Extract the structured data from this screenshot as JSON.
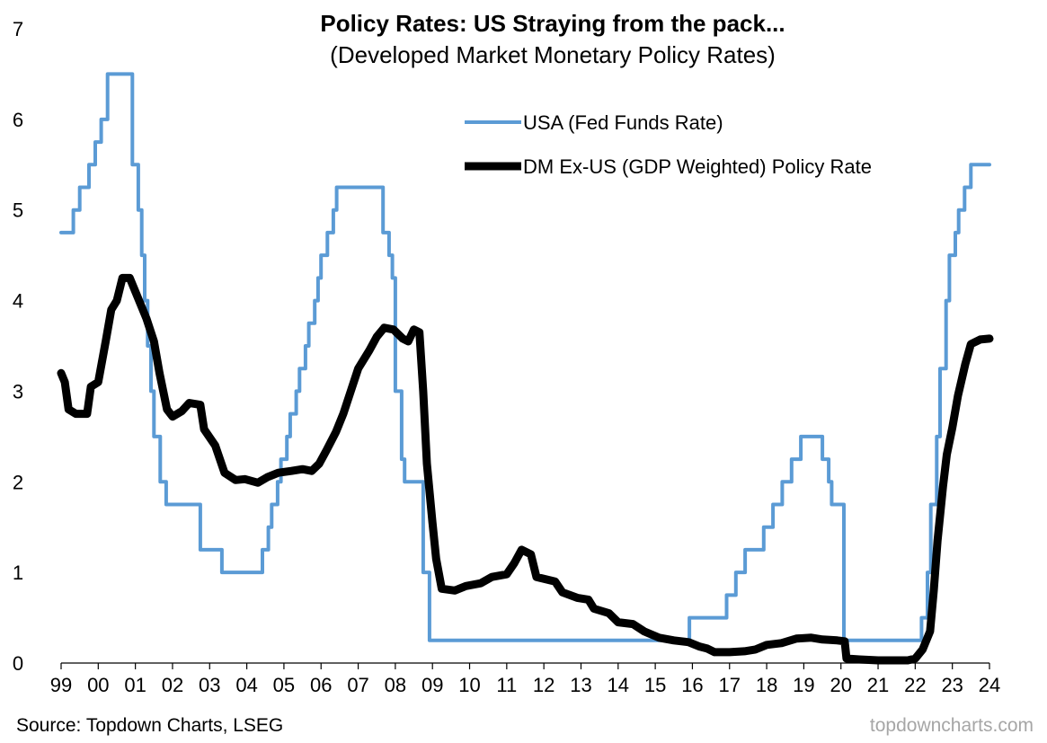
{
  "chart_data": {
    "type": "line",
    "title": "Policy Rates: US Straying from the pack...",
    "subtitle": "(Developed Market Monetary Policy Rates)",
    "xlabel": "",
    "ylabel": "",
    "xlim": [
      1999,
      2024
    ],
    "ylim": [
      0,
      7
    ],
    "y_ticks": [
      "0",
      "1",
      "2",
      "3",
      "4",
      "5",
      "6",
      "7"
    ],
    "x_ticks": [
      "99",
      "00",
      "01",
      "02",
      "03",
      "04",
      "05",
      "06",
      "07",
      "08",
      "09",
      "10",
      "11",
      "12",
      "13",
      "14",
      "15",
      "16",
      "17",
      "18",
      "19",
      "20",
      "21",
      "22",
      "23",
      "24"
    ],
    "grid": false,
    "legend_position": "top-right",
    "series": [
      {
        "name": "USA (Fed Funds Rate)",
        "color": "#5b9bd5",
        "step": true,
        "points": [
          [
            1999.0,
            4.75
          ],
          [
            1999.33,
            5.0
          ],
          [
            1999.5,
            5.25
          ],
          [
            1999.75,
            5.5
          ],
          [
            1999.92,
            5.75
          ],
          [
            2000.08,
            6.0
          ],
          [
            2000.25,
            6.5
          ],
          [
            2000.92,
            5.5
          ],
          [
            2001.08,
            5.0
          ],
          [
            2001.17,
            4.5
          ],
          [
            2001.25,
            4.0
          ],
          [
            2001.33,
            3.5
          ],
          [
            2001.42,
            3.0
          ],
          [
            2001.5,
            2.5
          ],
          [
            2001.67,
            2.0
          ],
          [
            2001.83,
            1.75
          ],
          [
            2002.75,
            1.25
          ],
          [
            2003.33,
            1.0
          ],
          [
            2004.42,
            1.25
          ],
          [
            2004.58,
            1.5
          ],
          [
            2004.67,
            1.75
          ],
          [
            2004.83,
            2.0
          ],
          [
            2004.92,
            2.25
          ],
          [
            2005.08,
            2.5
          ],
          [
            2005.17,
            2.75
          ],
          [
            2005.33,
            3.0
          ],
          [
            2005.42,
            3.25
          ],
          [
            2005.58,
            3.5
          ],
          [
            2005.67,
            3.75
          ],
          [
            2005.83,
            4.0
          ],
          [
            2005.92,
            4.25
          ],
          [
            2006.0,
            4.5
          ],
          [
            2006.17,
            4.75
          ],
          [
            2006.33,
            5.0
          ],
          [
            2006.42,
            5.25
          ],
          [
            2007.67,
            4.75
          ],
          [
            2007.83,
            4.5
          ],
          [
            2007.92,
            4.25
          ],
          [
            2008.0,
            3.0
          ],
          [
            2008.17,
            2.25
          ],
          [
            2008.25,
            2.0
          ],
          [
            2008.75,
            1.0
          ],
          [
            2008.92,
            0.25
          ],
          [
            2015.92,
            0.5
          ],
          [
            2016.92,
            0.75
          ],
          [
            2017.17,
            1.0
          ],
          [
            2017.42,
            1.25
          ],
          [
            2017.92,
            1.5
          ],
          [
            2018.17,
            1.75
          ],
          [
            2018.42,
            2.0
          ],
          [
            2018.67,
            2.25
          ],
          [
            2018.92,
            2.5
          ],
          [
            2019.5,
            2.25
          ],
          [
            2019.67,
            2.0
          ],
          [
            2019.75,
            1.75
          ],
          [
            2020.08,
            0.25
          ],
          [
            2022.17,
            0.5
          ],
          [
            2022.33,
            1.0
          ],
          [
            2022.42,
            1.75
          ],
          [
            2022.58,
            2.5
          ],
          [
            2022.67,
            3.25
          ],
          [
            2022.83,
            4.0
          ],
          [
            2022.92,
            4.5
          ],
          [
            2023.08,
            4.75
          ],
          [
            2023.17,
            5.0
          ],
          [
            2023.33,
            5.25
          ],
          [
            2023.5,
            5.5
          ],
          [
            2024.0,
            5.5
          ]
        ]
      },
      {
        "name": "DM Ex-US (GDP Weighted) Policy Rate",
        "color": "#000000",
        "step": false,
        "points": [
          [
            1999.0,
            3.2
          ],
          [
            1999.1,
            3.1
          ],
          [
            1999.2,
            2.8
          ],
          [
            1999.4,
            2.75
          ],
          [
            1999.7,
            2.75
          ],
          [
            1999.8,
            3.05
          ],
          [
            2000.0,
            3.1
          ],
          [
            2000.2,
            3.55
          ],
          [
            2000.35,
            3.9
          ],
          [
            2000.5,
            4.0
          ],
          [
            2000.65,
            4.25
          ],
          [
            2000.85,
            4.25
          ],
          [
            2001.0,
            4.1
          ],
          [
            2001.3,
            3.8
          ],
          [
            2001.5,
            3.55
          ],
          [
            2001.65,
            3.2
          ],
          [
            2001.85,
            2.8
          ],
          [
            2002.0,
            2.72
          ],
          [
            2002.25,
            2.78
          ],
          [
            2002.45,
            2.87
          ],
          [
            2002.75,
            2.85
          ],
          [
            2002.85,
            2.58
          ],
          [
            2003.15,
            2.4
          ],
          [
            2003.4,
            2.1
          ],
          [
            2003.7,
            2.02
          ],
          [
            2003.95,
            2.03
          ],
          [
            2004.3,
            1.99
          ],
          [
            2004.55,
            2.05
          ],
          [
            2004.85,
            2.1
          ],
          [
            2005.2,
            2.12
          ],
          [
            2005.5,
            2.14
          ],
          [
            2005.75,
            2.12
          ],
          [
            2005.95,
            2.2
          ],
          [
            2006.15,
            2.35
          ],
          [
            2006.4,
            2.55
          ],
          [
            2006.6,
            2.75
          ],
          [
            2006.8,
            3.0
          ],
          [
            2007.0,
            3.25
          ],
          [
            2007.3,
            3.45
          ],
          [
            2007.5,
            3.6
          ],
          [
            2007.7,
            3.7
          ],
          [
            2007.95,
            3.68
          ],
          [
            2008.2,
            3.58
          ],
          [
            2008.35,
            3.55
          ],
          [
            2008.5,
            3.68
          ],
          [
            2008.65,
            3.65
          ],
          [
            2008.75,
            3.0
          ],
          [
            2008.85,
            2.2
          ],
          [
            2009.0,
            1.55
          ],
          [
            2009.1,
            1.15
          ],
          [
            2009.25,
            0.82
          ],
          [
            2009.6,
            0.8
          ],
          [
            2009.9,
            0.85
          ],
          [
            2010.3,
            0.88
          ],
          [
            2010.6,
            0.95
          ],
          [
            2011.0,
            0.98
          ],
          [
            2011.2,
            1.1
          ],
          [
            2011.4,
            1.25
          ],
          [
            2011.65,
            1.2
          ],
          [
            2011.8,
            0.95
          ],
          [
            2012.0,
            0.93
          ],
          [
            2012.3,
            0.9
          ],
          [
            2012.5,
            0.78
          ],
          [
            2012.9,
            0.72
          ],
          [
            2013.2,
            0.7
          ],
          [
            2013.35,
            0.6
          ],
          [
            2013.75,
            0.55
          ],
          [
            2014.0,
            0.45
          ],
          [
            2014.4,
            0.43
          ],
          [
            2014.7,
            0.35
          ],
          [
            2015.1,
            0.28
          ],
          [
            2015.5,
            0.25
          ],
          [
            2015.9,
            0.23
          ],
          [
            2016.2,
            0.18
          ],
          [
            2016.4,
            0.16
          ],
          [
            2016.6,
            0.12
          ],
          [
            2017.0,
            0.12
          ],
          [
            2017.4,
            0.13
          ],
          [
            2017.7,
            0.15
          ],
          [
            2018.0,
            0.2
          ],
          [
            2018.4,
            0.22
          ],
          [
            2018.8,
            0.27
          ],
          [
            2019.2,
            0.28
          ],
          [
            2019.5,
            0.26
          ],
          [
            2019.9,
            0.25
          ],
          [
            2020.1,
            0.24
          ],
          [
            2020.15,
            0.05
          ],
          [
            2020.5,
            0.04
          ],
          [
            2021.0,
            0.03
          ],
          [
            2021.8,
            0.03
          ],
          [
            2022.0,
            0.05
          ],
          [
            2022.2,
            0.15
          ],
          [
            2022.4,
            0.35
          ],
          [
            2022.5,
            0.8
          ],
          [
            2022.6,
            1.35
          ],
          [
            2022.75,
            1.95
          ],
          [
            2022.85,
            2.3
          ],
          [
            2023.0,
            2.6
          ],
          [
            2023.15,
            2.95
          ],
          [
            2023.35,
            3.3
          ],
          [
            2023.5,
            3.52
          ],
          [
            2023.75,
            3.57
          ],
          [
            2024.0,
            3.58
          ]
        ]
      }
    ],
    "source": "Source: Topdown Charts, LSEG",
    "watermark": "topdowncharts.com"
  }
}
